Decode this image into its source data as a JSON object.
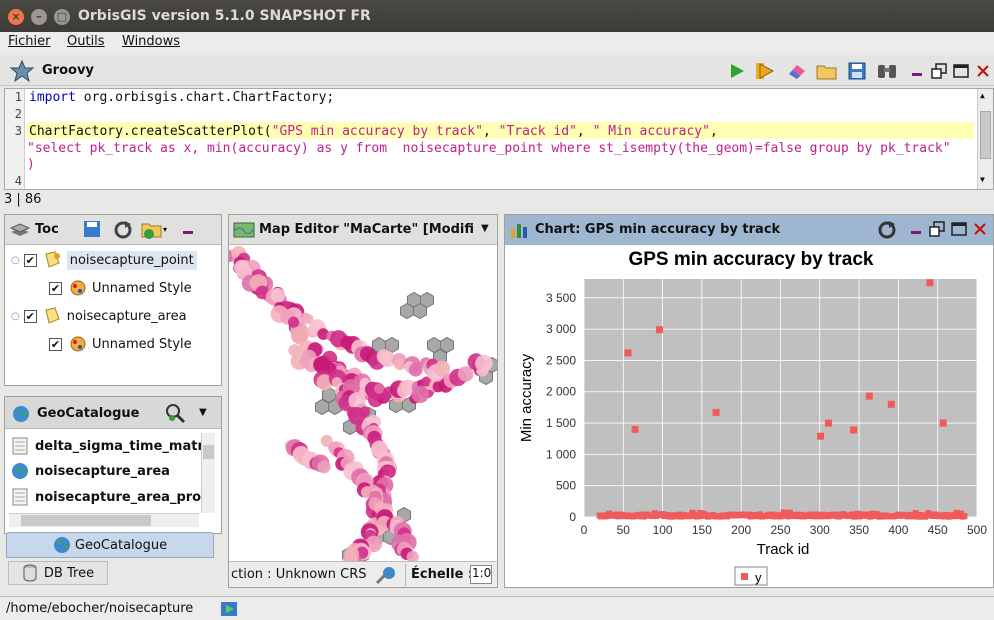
{
  "window": {
    "title": "OrbisGIS version 5.1.0 SNAPSHOT FR",
    "close_label": "×",
    "min_label": "–",
    "max_label": "□"
  },
  "menu": [
    "Fichier",
    "Outils",
    "Windows"
  ],
  "groovy": {
    "title": "Groovy",
    "code_lines": [
      {
        "n": "1",
        "kw": "import",
        "rest": " org.orbisgis.chart.ChartFactory;"
      },
      {
        "n": "2",
        "text": ""
      },
      {
        "n": "3",
        "text": "ChartFactory.createScatterPlot(",
        "s1": "\"GPS min accuracy by track\"",
        "s2": ", ",
        "s3": "\"Track id\"",
        "s4": ", ",
        "s5": "\" Min accuracy\"",
        "s6": ","
      },
      {
        "n": "",
        "str": "\"select pk_track as x, min(accuracy) as y from  noisecapture_point where st_isempty(the_geom)=false group by pk_track\""
      },
      {
        "n": "",
        "str": ")"
      },
      {
        "n": "4",
        "text": ""
      }
    ],
    "caret": "3 | 86"
  },
  "toc": {
    "title": "Toc",
    "layers": [
      {
        "label": "noisecapture_point",
        "style": "Unnamed Style"
      },
      {
        "label": "noisecapture_area",
        "style": "Unnamed Style"
      }
    ]
  },
  "geocatalogue": {
    "title": "GeoCatalogue",
    "items": [
      "delta_sigma_time_matr",
      "noisecapture_area",
      "noisecapture_area_pro"
    ],
    "tab_label": "GeoCatalogue",
    "db_tab_label": "DB Tree"
  },
  "map": {
    "title": "Map Editor \"MaCarte\" [Modifié]",
    "projection": "ction : Unknown CRS",
    "scale_label": "Échelle :",
    "scale_value": "1:0"
  },
  "chart_panel": {
    "title": "Chart: GPS min accuracy by track"
  },
  "chart_data": {
    "type": "scatter",
    "title": "GPS min accuracy by track",
    "xlabel": "Track id",
    "ylabel": "Min accuracy",
    "xlim": [
      0,
      500
    ],
    "ylim": [
      0,
      3800
    ],
    "xticks": [
      "0",
      "50",
      "100",
      "150",
      "200",
      "250",
      "300",
      "350",
      "400",
      "450",
      "500"
    ],
    "yticks": [
      "0",
      "500",
      "1 000",
      "1 500",
      "2 000",
      "2 500",
      "3 000",
      "3 500"
    ],
    "legend": "y",
    "grid": true,
    "color": "#f05a5a",
    "outliers": [
      {
        "x": 56,
        "y": 2620
      },
      {
        "x": 65,
        "y": 1400
      },
      {
        "x": 96,
        "y": 2990
      },
      {
        "x": 168,
        "y": 1670
      },
      {
        "x": 301,
        "y": 1290
      },
      {
        "x": 311,
        "y": 1500
      },
      {
        "x": 343,
        "y": 1390
      },
      {
        "x": 363,
        "y": 1930
      },
      {
        "x": 391,
        "y": 1800
      },
      {
        "x": 440,
        "y": 3740
      },
      {
        "x": 457,
        "y": 1500
      }
    ],
    "baseline": {
      "x_from": 20,
      "x_to": 485,
      "y_min": 5,
      "y_max": 80
    }
  },
  "statusbar": {
    "path": "/home/ebocher/noisecapture"
  }
}
